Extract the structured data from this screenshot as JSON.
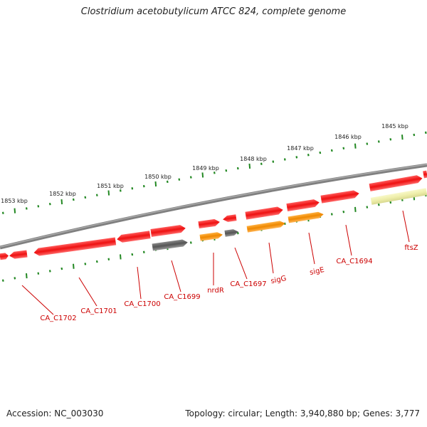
{
  "title": "Clostridium acetobutylicum ATCC 824, complete genome",
  "footer": {
    "accession": "Accession: NC_003030",
    "summary": "Topology: circular; Length: 3,940,880 bp; Genes: 3,777"
  },
  "colors": {
    "backbone": "#808080",
    "gene_red": "#ee1111",
    "gene_gray": "#666666",
    "gene_orange": "#ee8800",
    "gene_yellow": "#eeeeaa",
    "ruler": "#228822",
    "label": "#cc0000"
  },
  "ruler_labels": [
    "1853 kbp",
    "1852 kbp",
    "1851 kbp",
    "1850 kbp",
    "1849 kbp",
    "1848 kbp",
    "1847 kbp",
    "1846 kbp",
    "1845 kbp"
  ],
  "gene_labels": [
    "CA_C1702",
    "CA_C1701",
    "CA_C1700",
    "CA_C1699",
    "nrdR",
    "CA_C1697",
    "sigG",
    "sigE",
    "CA_C1694",
    "ftsZ"
  ]
}
